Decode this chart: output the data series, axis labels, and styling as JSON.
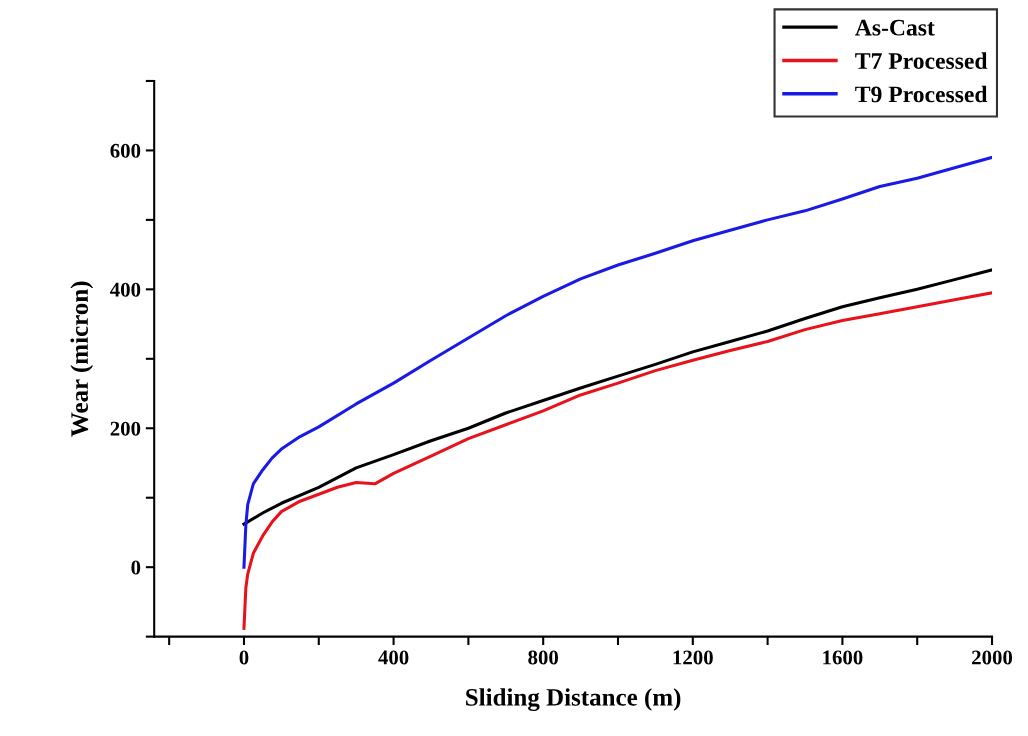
{
  "chart_data": {
    "type": "line",
    "xlabel": "Sliding Distance (m)",
    "ylabel": "Wear (micron)",
    "xlim": [
      -240,
      2000
    ],
    "ylim": [
      -100,
      700
    ],
    "xticks": [
      {
        "value": -200,
        "label": null
      },
      0,
      {
        "value": 200,
        "label": null
      },
      400,
      {
        "value": 600,
        "label": null
      },
      800,
      {
        "value": 1000,
        "label": null
      },
      1200,
      {
        "value": 1400,
        "label": null
      },
      1600,
      {
        "value": 1800,
        "label": null
      },
      2000
    ],
    "yticks": [
      {
        "value": -100,
        "label": null
      },
      0,
      {
        "value": 100,
        "label": null
      },
      200,
      {
        "value": 300,
        "label": null
      },
      400,
      {
        "value": 500,
        "label": null
      },
      600,
      {
        "value": 700,
        "label": null
      }
    ],
    "grid": false,
    "legend": "top right",
    "marker": "none",
    "line_style": "solid",
    "series": [
      {
        "name": "As-Cast",
        "color": "#000000",
        "x": [
          0,
          50,
          100,
          200,
          300,
          400,
          500,
          600,
          700,
          800,
          900,
          1000,
          1100,
          1200,
          1300,
          1400,
          1500,
          1600,
          1700,
          1800,
          1900,
          2000
        ],
        "values": [
          62,
          78,
          92,
          115,
          143,
          162,
          182,
          200,
          222,
          240,
          258,
          275,
          292,
          310,
          325,
          340,
          358,
          375,
          388,
          400,
          414,
          428
        ]
      },
      {
        "name": "T7 Processed",
        "color": "#e8121b",
        "x": [
          0,
          5,
          10,
          25,
          50,
          75,
          100,
          150,
          200,
          250,
          300,
          350,
          400,
          500,
          600,
          700,
          800,
          900,
          1000,
          1100,
          1200,
          1300,
          1400,
          1500,
          1600,
          1700,
          1800,
          1900,
          2000
        ],
        "values": [
          -88,
          -30,
          -10,
          20,
          45,
          65,
          80,
          95,
          105,
          115,
          122,
          120,
          135,
          160,
          185,
          205,
          225,
          248,
          265,
          283,
          298,
          312,
          325,
          342,
          355,
          365,
          375,
          385,
          395
        ]
      },
      {
        "name": "T9 Processed",
        "color": "#1a1ae6",
        "x": [
          0,
          5,
          10,
          25,
          50,
          75,
          100,
          150,
          200,
          300,
          400,
          500,
          600,
          700,
          800,
          900,
          1000,
          1100,
          1200,
          1300,
          1400,
          1500,
          1600,
          1700,
          1800,
          1900,
          2000
        ],
        "values": [
          0,
          60,
          90,
          120,
          140,
          157,
          170,
          188,
          202,
          235,
          265,
          298,
          330,
          362,
          390,
          415,
          435,
          452,
          470,
          485,
          500,
          513,
          530,
          548,
          560,
          575,
          590
        ]
      }
    ]
  }
}
